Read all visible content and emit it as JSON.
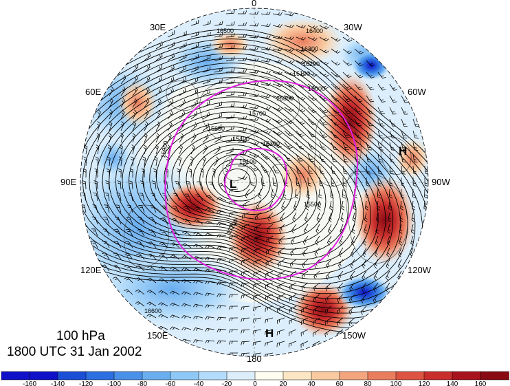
{
  "title": {
    "level": "100 hPa",
    "time": "1800 UTC 31 Jan 2002"
  },
  "longitude_labels": [
    {
      "text": "0",
      "lon": 0
    },
    {
      "text": "30W",
      "lon": -30
    },
    {
      "text": "60W",
      "lon": -60
    },
    {
      "text": "90W",
      "lon": -90
    },
    {
      "text": "120W",
      "lon": -120
    },
    {
      "text": "150W",
      "lon": -150
    },
    {
      "text": "180",
      "lon": 180
    },
    {
      "text": "150E",
      "lon": 150
    },
    {
      "text": "120E",
      "lon": 120
    },
    {
      "text": "90E",
      "lon": 90
    },
    {
      "text": "60E",
      "lon": 60
    },
    {
      "text": "30E",
      "lon": 30
    }
  ],
  "pressure_systems": [
    {
      "type": "L",
      "name": "low-center-label"
    },
    {
      "type": "H",
      "name": "high-center-label-west"
    },
    {
      "type": "H",
      "name": "high-center-label-south"
    }
  ],
  "contour_labels": [
    "16500",
    "16400",
    "16300",
    "16200",
    "16100",
    "16000",
    "15900",
    "15800",
    "15700",
    "15600",
    "15500",
    "15400",
    "15300",
    "15200",
    "15100",
    "16600"
  ],
  "colorbar": {
    "ticks": [
      "-160",
      "-140",
      "-120",
      "-100",
      "-80",
      "-60",
      "-40",
      "-20",
      "0",
      "20",
      "40",
      "60",
      "80",
      "100",
      "120",
      "140",
      "160"
    ],
    "colors": [
      "#1010c8",
      "#1a4fd6",
      "#2c6fe0",
      "#4a8fe8",
      "#6aaef0",
      "#8ec8f6",
      "#b4dcfa",
      "#dceefc",
      "#fffcf0",
      "#fde6c4",
      "#f9c9a0",
      "#f3a57e",
      "#ea7d5e",
      "#dd5442",
      "#c82e2c",
      "#a8141e",
      "#8a0a14"
    ]
  },
  "colors": {
    "contour": "#000000",
    "polar_circle": "#e020e0",
    "land": "#333333"
  }
}
